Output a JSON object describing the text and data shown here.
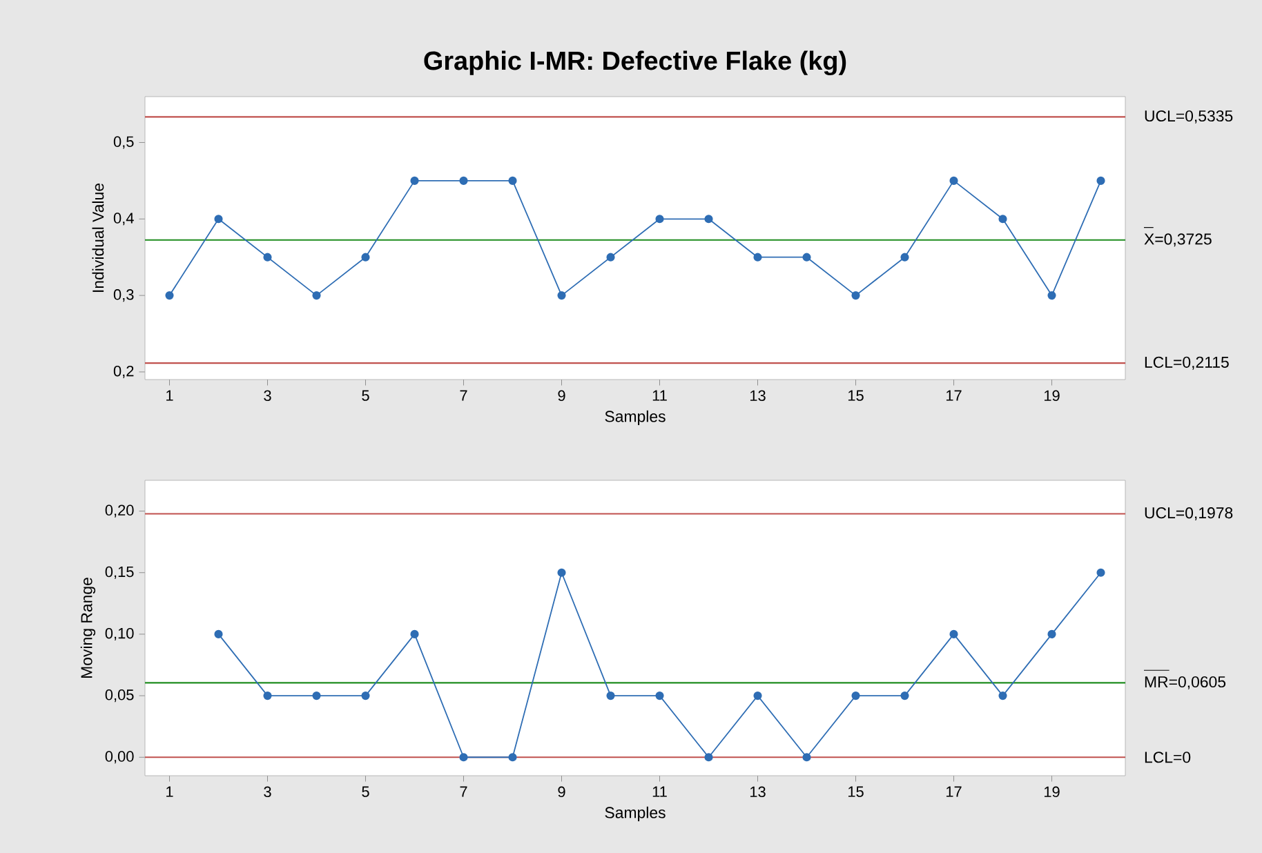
{
  "chart_data": [
    {
      "type": "line",
      "title": "Graphic I-MR: Defective Flake  (kg)",
      "xlabel": "Samples",
      "ylabel": "Individual Value",
      "marker": "circle",
      "x": [
        1,
        2,
        3,
        4,
        5,
        6,
        7,
        8,
        9,
        10,
        11,
        12,
        13,
        14,
        15,
        16,
        17,
        18,
        19,
        20
      ],
      "series": [
        {
          "color": "#2e6db4",
          "values": [
            0.3,
            0.4,
            0.35,
            0.3,
            0.35,
            0.45,
            0.45,
            0.45,
            0.3,
            0.35,
            0.4,
            0.4,
            0.35,
            0.35,
            0.3,
            0.35,
            0.45,
            0.4,
            0.3,
            0.45
          ]
        }
      ],
      "xlim": [
        0.5,
        20.5
      ],
      "xticks": [
        1,
        3,
        5,
        7,
        9,
        11,
        13,
        15,
        17,
        19
      ],
      "ylim": [
        0.19,
        0.56
      ],
      "yticks": [
        {
          "value": 0.2,
          "label": "0,2"
        },
        {
          "value": 0.3,
          "label": "0,3"
        },
        {
          "value": 0.4,
          "label": "0,4"
        },
        {
          "value": 0.5,
          "label": "0,5"
        }
      ],
      "ref_lines": [
        {
          "axis": "y",
          "value": 0.5335,
          "label": "UCL=0,5335",
          "color": "#c0504d"
        },
        {
          "axis": "y",
          "value": 0.3725,
          "label": "X=0,3725",
          "color": "#1e8c1e"
        },
        {
          "axis": "y",
          "value": 0.2115,
          "label": "LCL=0,2115",
          "color": "#c0504d"
        }
      ]
    },
    {
      "type": "line",
      "xlabel": "Samples",
      "ylabel": "Moving Range",
      "marker": "circle",
      "series": [
        {
          "color": "#2e6db4",
          "x": [
            2,
            3,
            4,
            5,
            6,
            7,
            8,
            9,
            10,
            11,
            12,
            13,
            14,
            15,
            16,
            17,
            18,
            19,
            20
          ],
          "values": [
            0.1,
            0.05,
            0.05,
            0.05,
            0.1,
            0,
            0,
            0.15,
            0.05,
            0.05,
            0,
            0.05,
            0,
            0.05,
            0.05,
            0.1,
            0.05,
            0.1,
            0.15
          ]
        }
      ],
      "xlim": [
        0.5,
        20.5
      ],
      "xticks": [
        1,
        3,
        5,
        7,
        9,
        11,
        13,
        15,
        17,
        19
      ],
      "ylim": [
        -0.015,
        0.225
      ],
      "yticks": [
        {
          "value": 0,
          "label": "0,00"
        },
        {
          "value": 0.05,
          "label": "0,05"
        },
        {
          "value": 0.1,
          "label": "0,10"
        },
        {
          "value": 0.15,
          "label": "0,15"
        },
        {
          "value": 0.2,
          "label": "0,20"
        }
      ],
      "ref_lines": [
        {
          "axis": "y",
          "value": 0.1978,
          "label": "UCL=0,1978",
          "color": "#c0504d"
        },
        {
          "axis": "y",
          "value": 0.0605,
          "label": "MR=0,0605",
          "color": "#1e8c1e"
        },
        {
          "axis": "y",
          "value": 0,
          "label": "LCL=0",
          "color": "#c0504d"
        }
      ]
    }
  ]
}
